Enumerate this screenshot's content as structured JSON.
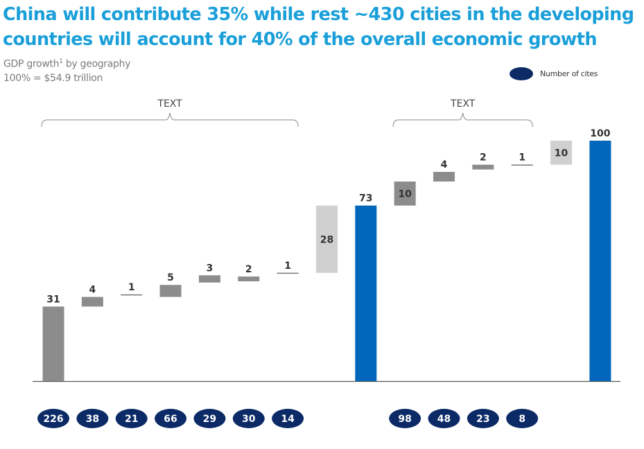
{
  "title": "China will contribute 35% while rest ~430 cities in the developing countries will account for 40% of the overall economic growth",
  "title_lines": [
    "China will contribute 35% while rest ~430 cities in the developing",
    "countries will account for 40% of the overall economic growth"
  ],
  "subtitle": {
    "line1_pre": "GDP growth",
    "line1_sup": "1",
    "line1_post": " by geography",
    "line2": "100% = $54.9 trillion"
  },
  "legend": {
    "label": "Number of cites",
    "color": "#0b2a66"
  },
  "groups": [
    {
      "label": "TEXT",
      "from_index": 0,
      "to_index": 6
    },
    {
      "label": "TEXT",
      "from_index": 9,
      "to_index": 12
    }
  ],
  "colors": {
    "dark_gray": "#8c8c8c",
    "light_gray": "#d0d0d0",
    "blue": "#0066bb",
    "navy": "#0b2a66",
    "title": "#1a9fd9"
  },
  "chart_data": {
    "type": "bar",
    "subtype": "waterfall",
    "title": "GDP growth by geography",
    "ylabel": "",
    "xlabel": "",
    "ylim": [
      0,
      100
    ],
    "grid": false,
    "legend_position": "top-right",
    "total_note": "100% = $54.9 trillion",
    "bars": [
      {
        "value": 31,
        "base": 0,
        "kind": "start",
        "color_key": "dark_gray",
        "cities": "226"
      },
      {
        "value": 4,
        "base": 31,
        "kind": "increment",
        "color_key": "dark_gray",
        "cities": "38"
      },
      {
        "value": 1,
        "base": 35,
        "kind": "increment",
        "color_key": "dark_gray",
        "cities": "21"
      },
      {
        "value": 5,
        "base": 35,
        "kind": "increment",
        "color_key": "dark_gray",
        "cities": "66"
      },
      {
        "value": 3,
        "base": 41,
        "kind": "increment",
        "color_key": "dark_gray",
        "cities": "29"
      },
      {
        "value": 2,
        "base": 41.5,
        "kind": "increment",
        "color_key": "dark_gray",
        "cities": "30"
      },
      {
        "value": 1,
        "base": 44,
        "kind": "increment",
        "color_key": "dark_gray",
        "cities": "14"
      },
      {
        "value": 28,
        "base": 45,
        "kind": "increment",
        "color_key": "light_gray",
        "cities": null
      },
      {
        "value": 73,
        "base": 0,
        "kind": "subtotal",
        "color_key": "blue",
        "cities": null
      },
      {
        "value": 10,
        "base": 73,
        "kind": "increment",
        "color_key": "dark_gray",
        "cities": "98"
      },
      {
        "value": 4,
        "base": 83,
        "kind": "increment",
        "color_key": "dark_gray",
        "cities": "48"
      },
      {
        "value": 2,
        "base": 88,
        "kind": "increment",
        "color_key": "dark_gray",
        "cities": "23"
      },
      {
        "value": 1,
        "base": 89,
        "kind": "increment",
        "color_key": "dark_gray",
        "cities": "8"
      },
      {
        "value": 10,
        "base": 90,
        "kind": "increment",
        "color_key": "light_gray",
        "cities": null
      },
      {
        "value": 100,
        "base": 0,
        "kind": "total",
        "color_key": "blue",
        "cities": null
      }
    ],
    "values": [
      31,
      4,
      1,
      5,
      3,
      2,
      1,
      28,
      73,
      10,
      4,
      2,
      1,
      10,
      100
    ],
    "city_counts": [
      "226",
      "38",
      "21",
      "66",
      "29",
      "30",
      "14",
      "98",
      "48",
      "23",
      "8"
    ]
  }
}
